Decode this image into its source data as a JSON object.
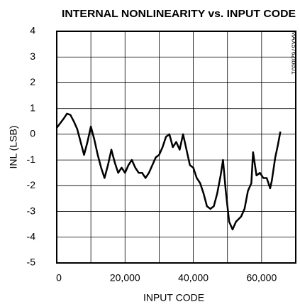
{
  "chart_data": {
    "type": "line",
    "title": "INTERNAL NONLINEARITY vs. INPUT CODE",
    "x_label": "INPUT CODE",
    "y_label": "INL (LSB)",
    "annotation": "MAX5762toc01",
    "x": [
      0,
      2000,
      3000,
      4000,
      5000,
      6000,
      7000,
      8000,
      9000,
      10000,
      11000,
      12000,
      13000,
      14000,
      15000,
      16000,
      17000,
      18000,
      19000,
      20000,
      21000,
      22000,
      23000,
      24000,
      25000,
      26000,
      27000,
      28000,
      29000,
      30000,
      31000,
      32000,
      33000,
      34000,
      35000,
      36000,
      37000,
      38000,
      39000,
      40000,
      41000,
      42000,
      43000,
      44000,
      45000,
      46000,
      47000,
      48000,
      48700,
      49500,
      50500,
      51500,
      52500,
      54000,
      55000,
      56000,
      57000,
      57500,
      58500,
      59500,
      60500,
      61500,
      62500,
      63000,
      64000,
      64800,
      65500
    ],
    "series": [
      {
        "name": "INL",
        "color": "#000000",
        "values": [
          0.25,
          0.6,
          0.8,
          0.75,
          0.5,
          0.2,
          -0.3,
          -0.8,
          -0.3,
          0.3,
          -0.2,
          -0.8,
          -1.3,
          -1.7,
          -1.2,
          -0.6,
          -1.1,
          -1.5,
          -1.3,
          -1.5,
          -1.2,
          -1.0,
          -1.3,
          -1.5,
          -1.5,
          -1.7,
          -1.5,
          -1.2,
          -0.9,
          -0.8,
          -0.5,
          -0.1,
          0.0,
          -0.5,
          -0.3,
          -0.6,
          0.0,
          -0.6,
          -1.2,
          -1.3,
          -1.7,
          -1.9,
          -2.3,
          -2.8,
          -2.9,
          -2.8,
          -2.3,
          -1.6,
          -1.0,
          -2.2,
          -3.4,
          -3.7,
          -3.4,
          -3.2,
          -2.9,
          -2.2,
          -1.9,
          -0.7,
          -1.6,
          -1.5,
          -1.7,
          -1.7,
          -2.1,
          -1.8,
          -0.9,
          -0.4,
          0.1
        ]
      }
    ],
    "xlim": [
      0,
      70000
    ],
    "xticks": [
      0,
      {
        "value": 20000,
        "label": "20,000"
      },
      {
        "value": 40000,
        "label": "40,000"
      },
      {
        "value": 60000,
        "label": "60,000"
      }
    ],
    "xgrid": [
      10000,
      20000,
      30000,
      40000,
      50000,
      60000
    ],
    "ylim": [
      -5,
      4
    ],
    "yticks": [
      -5,
      -4,
      -3,
      -2,
      -1,
      0,
      1,
      2,
      3,
      4
    ],
    "grid": true
  }
}
